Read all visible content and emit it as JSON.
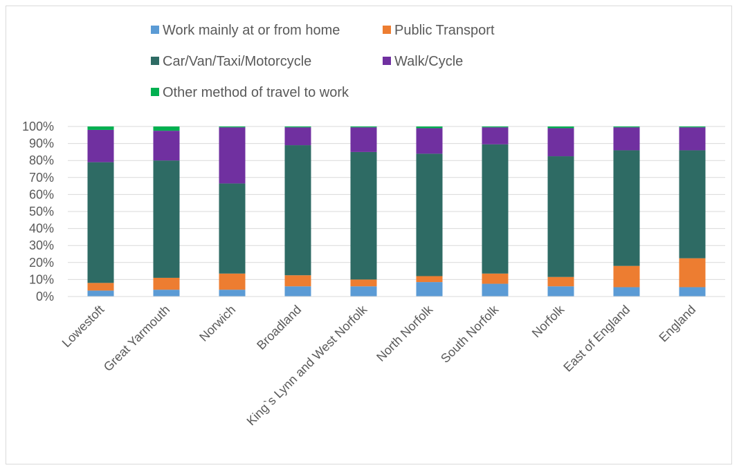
{
  "chart_data": {
    "type": "bar",
    "stacked": "percent",
    "title": "",
    "xlabel": "",
    "ylabel": "",
    "ylim": [
      0,
      100
    ],
    "yticks": [
      "0%",
      "10%",
      "20%",
      "30%",
      "40%",
      "50%",
      "60%",
      "70%",
      "80%",
      "90%",
      "100%"
    ],
    "grid": true,
    "legend_position": "top",
    "categories": [
      "Lowestoft",
      "Great Yarmouth",
      "Norwich",
      "Broadland",
      "King`s Lynn and West Norfolk",
      "North Norfolk",
      "South Norfolk",
      "Norfolk",
      "East of England",
      "England"
    ],
    "series": [
      {
        "name": "Work mainly at or from home",
        "color": "#5b9bd5",
        "values": [
          3.5,
          4.0,
          4.0,
          6.0,
          6.0,
          8.5,
          7.5,
          6.0,
          5.5,
          5.5
        ]
      },
      {
        "name": "Public Transport",
        "color": "#ed7d31",
        "values": [
          4.5,
          7.0,
          9.5,
          6.5,
          4.0,
          3.5,
          6.0,
          5.5,
          12.5,
          17.0
        ]
      },
      {
        "name": "Car/Van/Taxi/Motorcycle",
        "color": "#2e6b64",
        "values": [
          71.0,
          69.0,
          53.0,
          76.5,
          75.0,
          72.0,
          76.0,
          71.0,
          68.0,
          63.5
        ]
      },
      {
        "name": "Walk/Cycle",
        "color": "#7030a0",
        "values": [
          19.0,
          17.5,
          33.0,
          10.5,
          14.5,
          15.0,
          10.0,
          16.5,
          13.5,
          13.5
        ]
      },
      {
        "name": "Other method of travel to work",
        "color": "#00b050",
        "values": [
          2.0,
          2.5,
          0.5,
          0.5,
          0.5,
          1.0,
          0.5,
          1.0,
          0.5,
          0.5
        ]
      }
    ]
  }
}
